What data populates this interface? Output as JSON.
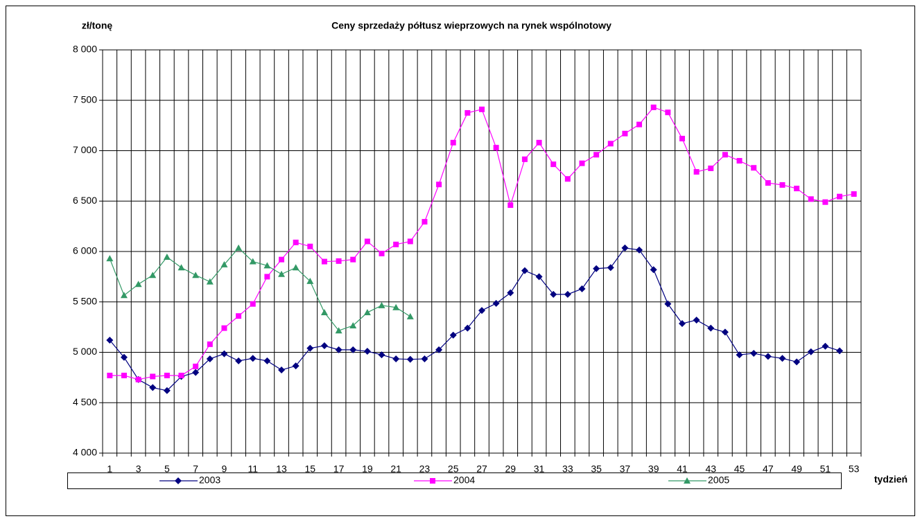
{
  "chart_data": {
    "type": "line",
    "title": "Ceny sprzedaży półtusz wieprzowych na rynek wspólnotowy",
    "ylabel": "zł/tonę",
    "xlabel": "tydzień",
    "categories": [
      "1",
      null,
      "3",
      null,
      "5",
      null,
      "7",
      null,
      "9",
      null,
      "11",
      null,
      "13",
      null,
      "15",
      null,
      "17",
      null,
      "19",
      null,
      "21",
      null,
      "23",
      null,
      "25",
      null,
      "27",
      null,
      "29",
      null,
      "31",
      null,
      "33",
      null,
      "35",
      null,
      "37",
      null,
      "39",
      null,
      "41",
      null,
      "43",
      null,
      "45",
      null,
      "47",
      null,
      "49",
      null,
      "51",
      null,
      "53"
    ],
    "ylim": [
      4000,
      8000
    ],
    "yticks": [
      {
        "value": 4000,
        "label": "4 000"
      },
      {
        "value": 4500,
        "label": "4 500"
      },
      {
        "value": 5000,
        "label": "5 000"
      },
      {
        "value": 5500,
        "label": "5 500"
      },
      {
        "value": 6000,
        "label": "6 000"
      },
      {
        "value": 6500,
        "label": "6 500"
      },
      {
        "value": 7000,
        "label": "7 000"
      },
      {
        "value": 7500,
        "label": "7 500"
      },
      {
        "value": 8000,
        "label": "8 000"
      }
    ],
    "grid": true,
    "legend": "bottom",
    "series": [
      {
        "name": "2003",
        "color": "#000080",
        "marker": "diamond",
        "values": [
          5120,
          4950,
          4730,
          4650,
          4620,
          4760,
          4800,
          4935,
          4985,
          4915,
          4940,
          4915,
          4825,
          4865,
          5040,
          5065,
          5025,
          5025,
          5010,
          4975,
          4935,
          4930,
          4935,
          5025,
          5170,
          5240,
          5415,
          5485,
          5590,
          5810,
          5750,
          5575,
          5575,
          5630,
          5830,
          5840,
          6035,
          6015,
          5820,
          5480,
          5285,
          5320,
          5240,
          5200,
          4975,
          4990,
          4960,
          4940,
          4905,
          5005,
          5060,
          5015,
          null
        ]
      },
      {
        "name": "2004",
        "color": "#ff00ff",
        "marker": "square",
        "values": [
          4770,
          4770,
          4730,
          4760,
          4770,
          4770,
          4860,
          5080,
          5240,
          5360,
          5480,
          5750,
          5920,
          6090,
          6050,
          5900,
          5905,
          5920,
          6100,
          5980,
          6070,
          6100,
          6295,
          6665,
          7080,
          7375,
          7410,
          7030,
          6460,
          6915,
          7080,
          6865,
          6720,
          6875,
          6960,
          7070,
          7170,
          7260,
          7430,
          7380,
          7120,
          6790,
          6825,
          6960,
          6900,
          6830,
          6680,
          6660,
          6625,
          6520,
          6490,
          6545,
          6570
        ]
      },
      {
        "name": "2005",
        "color": "#339966",
        "marker": "triangle",
        "values": [
          5930,
          5565,
          5675,
          5765,
          5945,
          5840,
          5765,
          5700,
          5870,
          6035,
          5900,
          5860,
          5775,
          5840,
          5705,
          5395,
          5215,
          5265,
          5395,
          5465,
          5445,
          5355,
          null,
          null,
          null,
          null,
          null,
          null,
          null,
          null,
          null,
          null,
          null,
          null,
          null,
          null,
          null,
          null,
          null,
          null,
          null,
          null,
          null,
          null,
          null,
          null,
          null,
          null,
          null,
          null,
          null,
          null,
          null
        ]
      }
    ]
  }
}
